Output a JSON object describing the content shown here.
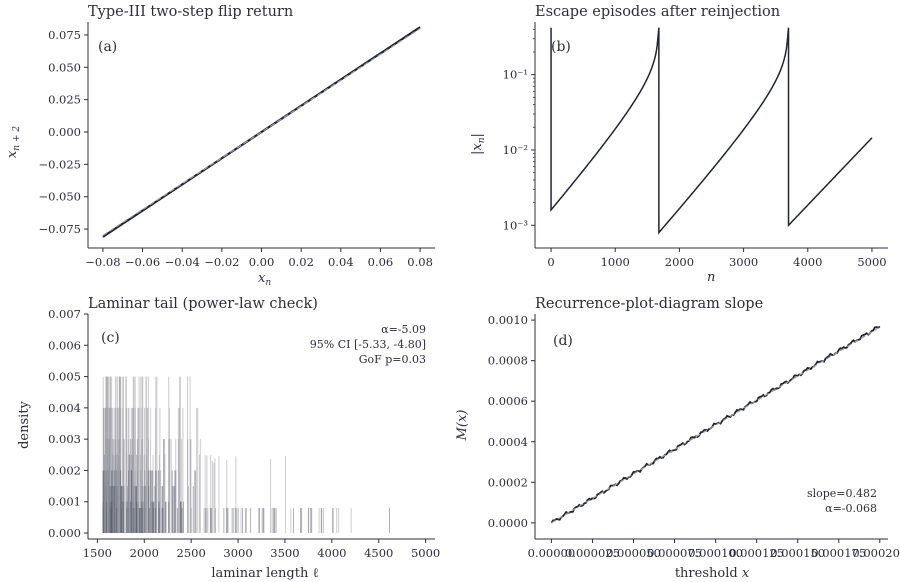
{
  "colors": {
    "ink": "#2b2d42",
    "line": "#1f2436",
    "grey": "#9a9aa3",
    "bar": "#5a5f6e",
    "axis": "#2b2d42"
  },
  "chart_data": [
    {
      "id": "a",
      "type": "line",
      "tag": "(a)",
      "title": "Type-III two-step flip return",
      "xlabel": "x_n",
      "ylabel": "x_{n+2}",
      "xlim": [
        -0.085,
        0.085
      ],
      "ylim": [
        -0.085,
        0.085
      ],
      "xticks": [
        -0.08,
        -0.06,
        -0.04,
        -0.02,
        0.0,
        0.02,
        0.04,
        0.06,
        0.08
      ],
      "xtick_labels": [
        "−0.08",
        "−0.06",
        "−0.04",
        "−0.02",
        "0.00",
        "0.02",
        "0.04",
        "0.06",
        "0.08"
      ],
      "yticks": [
        -0.075,
        -0.05,
        -0.025,
        0.0,
        0.025,
        0.05,
        0.075
      ],
      "ytick_labels": [
        "−0.075",
        "−0.050",
        "−0.025",
        "0.000",
        "0.025",
        "0.050",
        "0.075"
      ],
      "series": [
        {
          "style": "solid",
          "x": [
            -0.08,
            0.08
          ],
          "y": [
            -0.081,
            0.081
          ]
        },
        {
          "style": "dashed",
          "x": [
            -0.08,
            0.08
          ],
          "y": [
            -0.08,
            0.08
          ]
        }
      ],
      "grid": false
    },
    {
      "id": "b",
      "type": "line",
      "tag": "(b)",
      "title": "Escape episodes after reinjection",
      "xlabel": "n",
      "ylabel": "|x_n|",
      "yscale": "log",
      "xlim": [
        -250,
        5250
      ],
      "ylim": [
        0.0006,
        0.5
      ],
      "xticks": [
        0,
        1000,
        2000,
        3000,
        4000,
        5000
      ],
      "xtick_labels": [
        "0",
        "1000",
        "2000",
        "3000",
        "4000",
        "5000"
      ],
      "yticks": [
        0.001,
        0.01,
        0.1
      ],
      "ytick_labels": [
        "10⁻³",
        "10⁻²",
        "10⁻¹"
      ],
      "episodes": [
        {
          "start": 0,
          "end": 1680,
          "y0": 0.0016,
          "y1": 0.42,
          "drop_from": 0.42
        },
        {
          "start": 1680,
          "end": 3700,
          "y0": 0.0008,
          "y1": 0.42,
          "drop_from": 0.42
        },
        {
          "start": 3700,
          "end": 5000,
          "y0": 0.001,
          "y1": 0.0145,
          "drop_from": null
        }
      ],
      "grid": false
    },
    {
      "id": "c",
      "type": "bar",
      "tag": "(c)",
      "title": "Laminar tail (power-law check)",
      "xlabel": "laminar length ℓ",
      "ylabel": "density",
      "xlim": [
        1400,
        5100
      ],
      "ylim": [
        0,
        0.007
      ],
      "xticks": [
        1500,
        2000,
        2500,
        3000,
        3500,
        4000,
        4500,
        5000
      ],
      "xtick_labels": [
        "1500",
        "2000",
        "2500",
        "3000",
        "3500",
        "4000",
        "4500",
        "5000"
      ],
      "yticks": [
        0.0,
        0.001,
        0.002,
        0.003,
        0.004,
        0.005,
        0.006,
        0.007
      ],
      "ytick_labels": [
        "0.000",
        "0.001",
        "0.002",
        "0.003",
        "0.004",
        "0.005",
        "0.006",
        "0.007"
      ],
      "annotations": [
        "α=-5.09",
        "95% CI [-5.33, -4.80]",
        "GoF p=0.03"
      ],
      "grid": false
    },
    {
      "id": "d",
      "type": "line",
      "tag": "(d)",
      "title": "Recurrence-plot-diagram slope",
      "xlabel": "threshold x",
      "ylabel": "M(x)",
      "xlim": [
        -1e-05,
        0.000205
      ],
      "ylim": [
        -5e-05,
        0.00103
      ],
      "xticks": [
        0.0,
        2.5e-05,
        5e-05,
        7.5e-05,
        0.0001,
        0.000125,
        0.00015,
        0.000175,
        0.0002
      ],
      "xtick_labels": [
        "0.00000",
        "0.000025",
        "0.000050",
        "0.000075",
        "0.000100",
        "0.000125",
        "0.000150",
        "0.000175",
        "0.000200"
      ],
      "yticks": [
        0.0,
        0.0002,
        0.0004,
        0.0006,
        0.0008,
        0.001
      ],
      "ytick_labels": [
        "0.0000",
        "0.0002",
        "0.0004",
        "0.0006",
        "0.0008",
        "0.0010"
      ],
      "series": [
        {
          "style": "solid",
          "x": [
            0.0,
            0.0002
          ],
          "y": [
            0.0,
            0.00097
          ]
        },
        {
          "style": "dashed",
          "x": [
            0.0,
            0.0002
          ],
          "y": [
            0.0,
            0.000965
          ]
        }
      ],
      "annotations": [
        "slope=0.482",
        "α=-0.068"
      ],
      "grid": false
    }
  ]
}
